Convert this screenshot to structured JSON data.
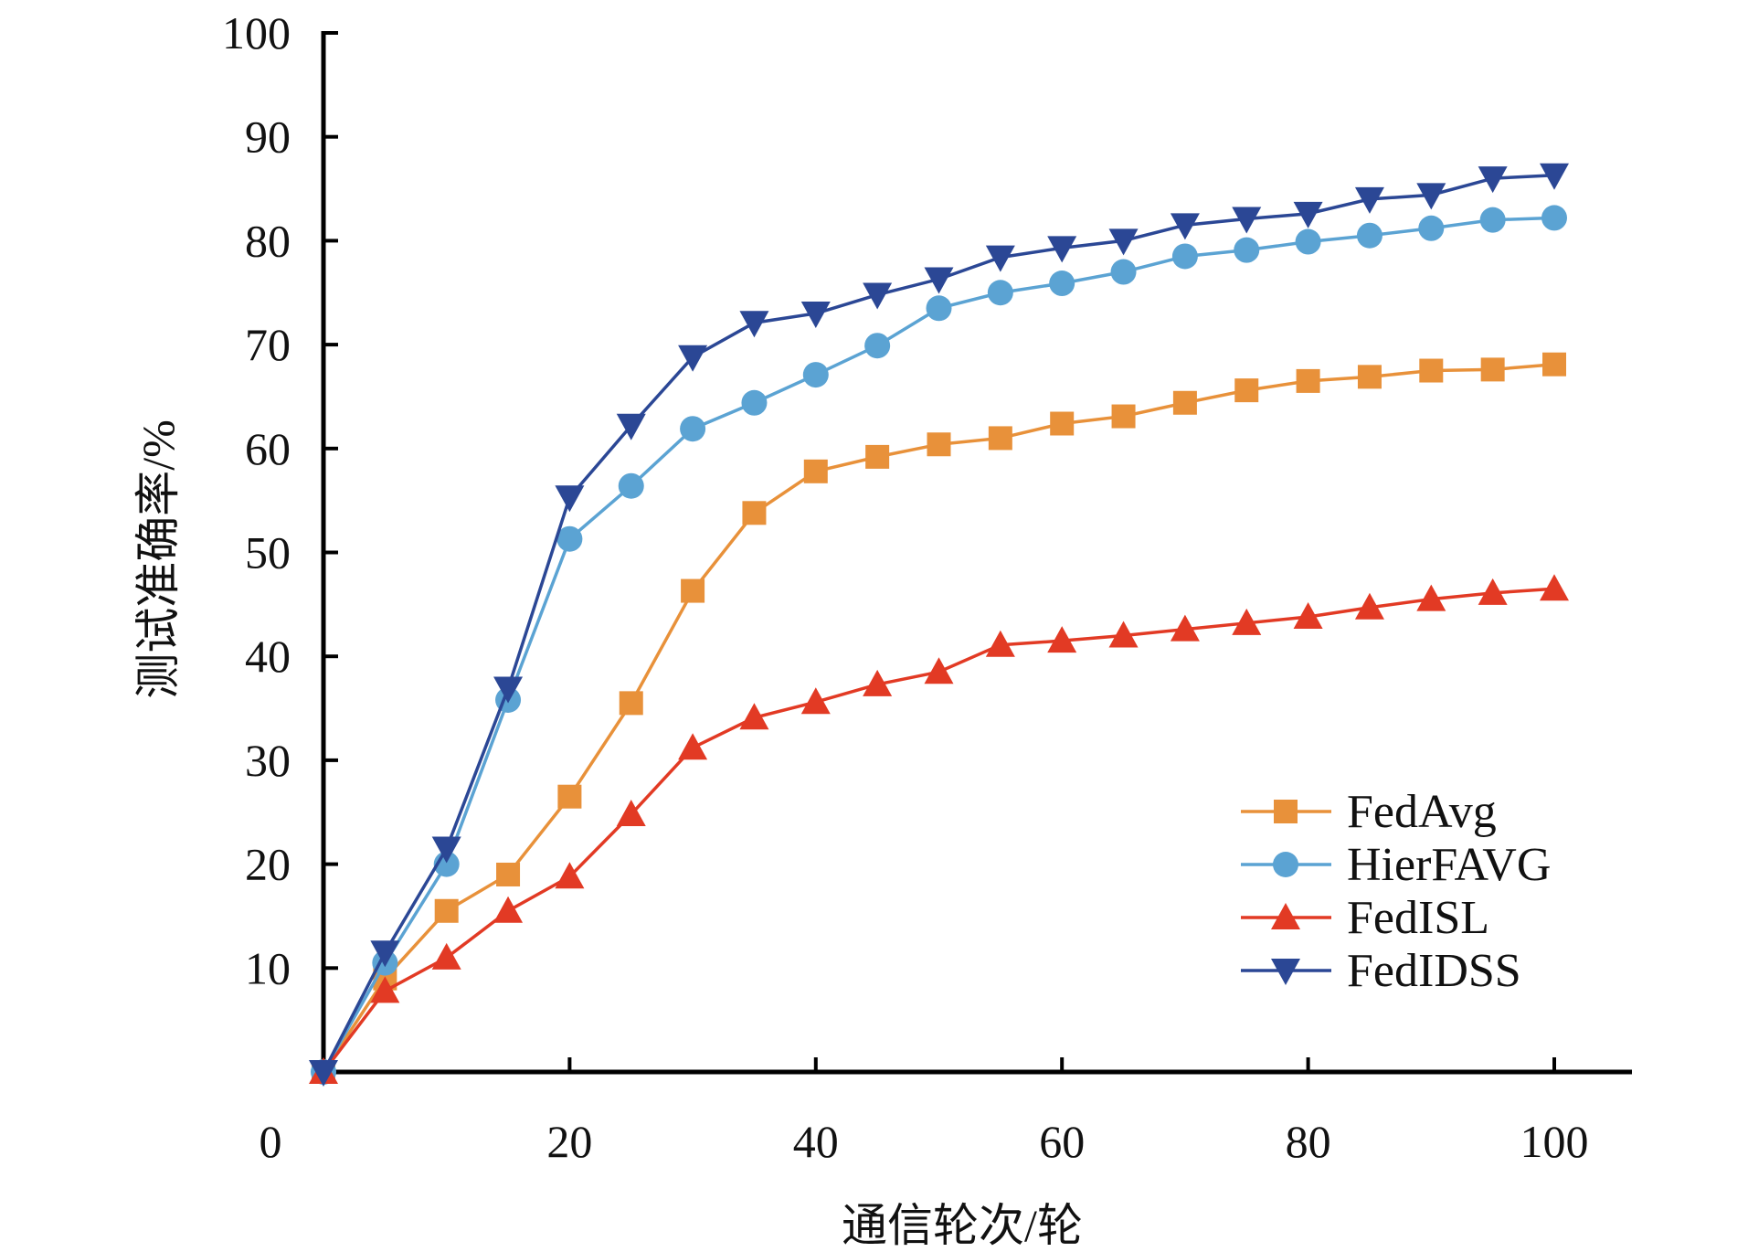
{
  "chart_data": {
    "type": "line",
    "title": "",
    "xlabel": "通信轮次/轮",
    "ylabel": "测试准确率/%",
    "xlim": [
      0,
      100
    ],
    "ylim": [
      0,
      100
    ],
    "x_ticks": [
      "0",
      "20",
      "40",
      "60",
      "80",
      "100"
    ],
    "y_ticks": [
      "10",
      "20",
      "30",
      "40",
      "50",
      "60",
      "70",
      "80",
      "90",
      "100"
    ],
    "grid": false,
    "legend_position": "bottom-right",
    "x": [
      0,
      5,
      10,
      15,
      20,
      25,
      30,
      35,
      40,
      45,
      50,
      55,
      60,
      65,
      70,
      75,
      80,
      85,
      90,
      95,
      100
    ],
    "series": [
      {
        "name": "FedAvg",
        "color": "#E8913A",
        "marker": "square",
        "values": [
          0,
          9,
          15.5,
          19,
          26.5,
          35.5,
          46.3,
          53.8,
          57.8,
          59.2,
          60.4,
          61,
          62.4,
          63.1,
          64.4,
          65.6,
          66.5,
          66.9,
          67.5,
          67.6,
          68.1
        ]
      },
      {
        "name": "HierFAVG",
        "color": "#5BA3D3",
        "marker": "circle",
        "values": [
          0,
          10.5,
          20,
          35.8,
          51.3,
          56.4,
          61.9,
          64.4,
          67.1,
          69.9,
          73.5,
          75,
          75.9,
          77,
          78.5,
          79.1,
          79.9,
          80.5,
          81.2,
          82,
          82.2
        ]
      },
      {
        "name": "FedISL",
        "color": "#E23A24",
        "marker": "triangle-up",
        "values": [
          0,
          7.8,
          11,
          15.5,
          18.8,
          24.8,
          31.2,
          34.1,
          35.6,
          37.3,
          38.5,
          41.1,
          41.5,
          42,
          42.6,
          43.2,
          43.8,
          44.7,
          45.5,
          46.1,
          46.5
        ]
      },
      {
        "name": "FedIDSS",
        "color": "#2B4795",
        "marker": "triangle-down",
        "values": [
          0,
          11.5,
          21.5,
          36.9,
          55.3,
          62.2,
          68.8,
          72.1,
          73,
          74.8,
          76.3,
          78.4,
          79.3,
          80,
          81.5,
          82.1,
          82.6,
          84,
          84.4,
          86,
          86.3
        ]
      }
    ]
  }
}
